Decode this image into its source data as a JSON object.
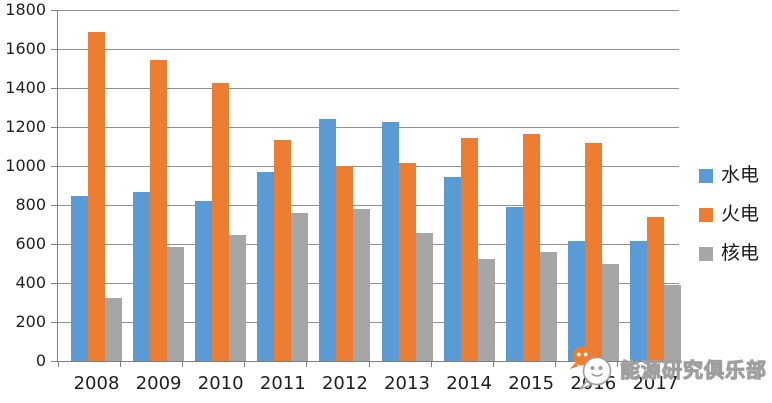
{
  "chart_data": {
    "type": "bar",
    "title": "",
    "xlabel": "",
    "ylabel": "",
    "categories": [
      "2008",
      "2009",
      "2010",
      "2011",
      "2012",
      "2013",
      "2014",
      "2015",
      "2016",
      "2017"
    ],
    "series": [
      {
        "name": "水电",
        "color": "#5B9BD5",
        "values": [
          848,
          865,
          818,
          970,
          1239,
          1225,
          945,
          789,
          615,
          615
        ]
      },
      {
        "name": "火电",
        "color": "#ED7D31",
        "values": [
          1685,
          1545,
          1428,
          1133,
          1000,
          1015,
          1143,
          1162,
          1119,
          738
        ]
      },
      {
        "name": "核电",
        "color": "#A6A6A6",
        "values": [
          325,
          585,
          645,
          760,
          782,
          658,
          523,
          560,
          500,
          390
        ]
      }
    ],
    "ylim": [
      0,
      1800
    ],
    "ytick_interval": 200,
    "y_ticks": [
      "0",
      "200",
      "400",
      "600",
      "800",
      "1000",
      "1200",
      "1400",
      "1600",
      "1800"
    ],
    "grid": true,
    "legend_position": "right",
    "background_color": "#FFFFFF",
    "gridline_color": "#919191",
    "axis_color": "#7F7F7F",
    "label_color": "#1F1F1F"
  },
  "watermark": {
    "text": "能源研究俱乐部",
    "logo": "chat-bubbles-icon"
  }
}
